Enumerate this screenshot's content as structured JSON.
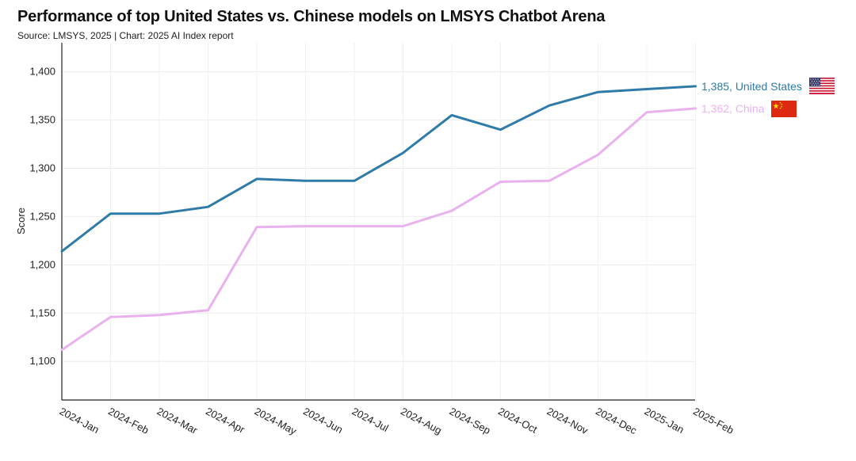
{
  "header": {
    "title": "Performance of top United States vs. Chinese models on LMSYS Chatbot Arena",
    "subtitle": "Source: LMSYS, 2025 | Chart: 2025 AI Index report"
  },
  "chart_data": {
    "type": "line",
    "title": "Performance of top United States vs. Chinese models on LMSYS Chatbot Arena",
    "subtitle": "Source: LMSYS, 2025 | Chart: 2025 AI Index report",
    "xlabel": "",
    "ylabel": "Score",
    "ylim": [
      1060,
      1430
    ],
    "yticks": [
      1100,
      1150,
      1200,
      1250,
      1300,
      1350,
      1400
    ],
    "ytick_labels": [
      "1,100",
      "1,150",
      "1,200",
      "1,250",
      "1,300",
      "1,350",
      "1,400"
    ],
    "grid": true,
    "categories": [
      "2024-Jan",
      "2024-Feb",
      "2024-Mar",
      "2024-Apr",
      "2024-May",
      "2024-Jun",
      "2024-Jul",
      "2024-Aug",
      "2024-Sep",
      "2024-Oct",
      "2024-Nov",
      "2024-Dec",
      "2025-Jan",
      "2025-Feb"
    ],
    "series": [
      {
        "name": "United States",
        "color": "#2f7ba8",
        "end_label": "1,385, United States",
        "flag": "us-flag",
        "values": [
          1214,
          1253,
          1253,
          1260,
          1289,
          1287,
          1287,
          1316,
          1355,
          1340,
          1365,
          1379,
          1382,
          1385
        ]
      },
      {
        "name": "China",
        "color": "#e9b1ee",
        "end_label": "1,362, China",
        "flag": "china-flag",
        "values": [
          1112,
          1146,
          1148,
          1153,
          1239,
          1240,
          1240,
          1240,
          1256,
          1286,
          1287,
          1314,
          1358,
          1362
        ]
      }
    ]
  }
}
